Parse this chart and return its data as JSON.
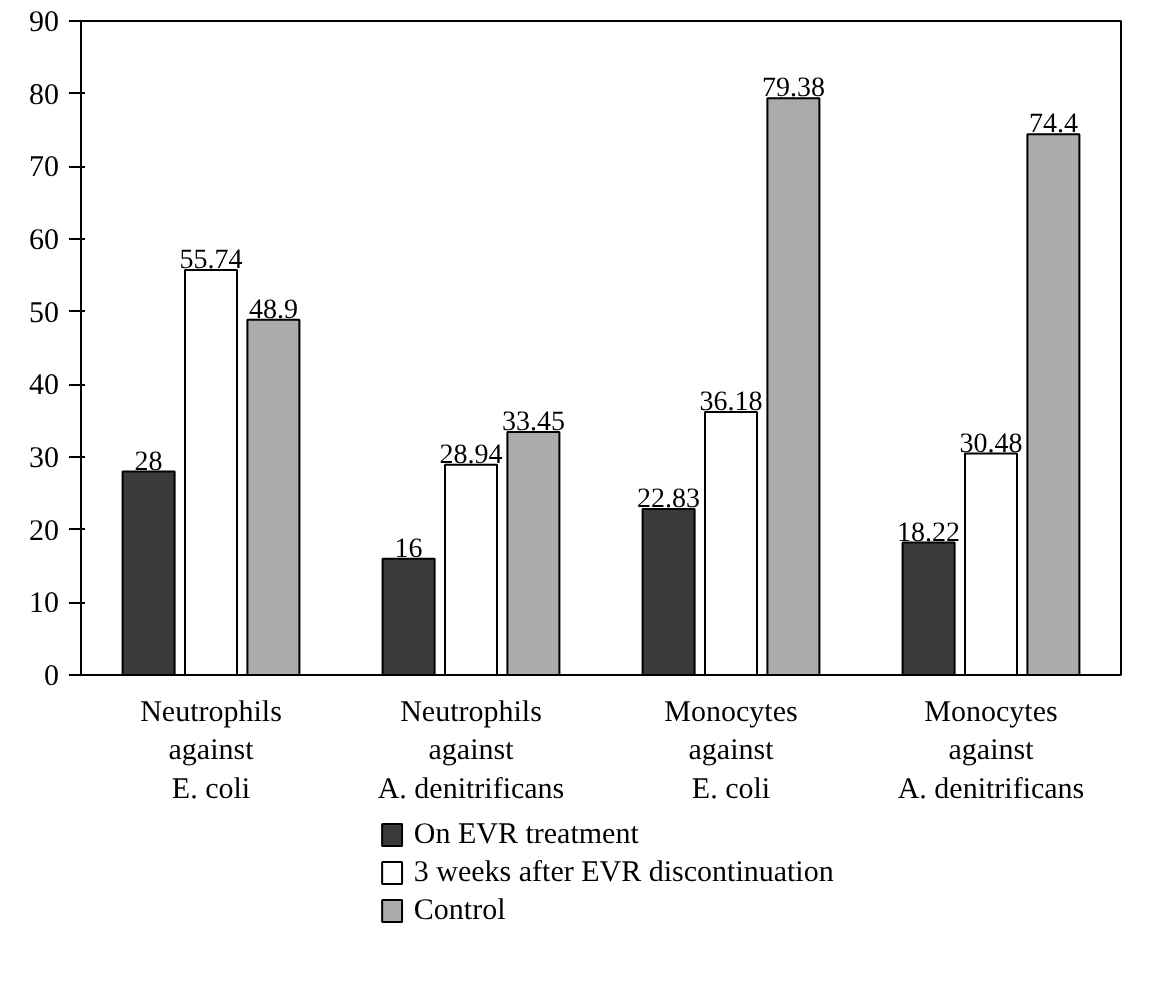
{
  "chart_data": {
    "type": "bar",
    "categories": [
      "Neutrophils\nagainst\nE. coli",
      "Neutrophils\nagainst\nA. denitrificans",
      "Monocytes\nagainst\nE. coli",
      "Monocytes\nagainst\nA. denitrificans"
    ],
    "series": [
      {
        "name": "On EVR treatment",
        "color": "#3a3a3a",
        "values": [
          28,
          16,
          22.83,
          18.22
        ]
      },
      {
        "name": "3 weeks after EVR discontinuation",
        "color": "#ffffff",
        "values": [
          55.74,
          28.94,
          36.18,
          30.48
        ]
      },
      {
        "name": "Control",
        "color": "#ababab",
        "values": [
          48.9,
          33.45,
          79.38,
          74.4
        ]
      }
    ],
    "ylim": [
      0,
      90
    ],
    "yticks": [
      0,
      10,
      20,
      30,
      40,
      50,
      60,
      70,
      80,
      90
    ],
    "grid": false,
    "legend": "bottom",
    "data_labels": true
  }
}
